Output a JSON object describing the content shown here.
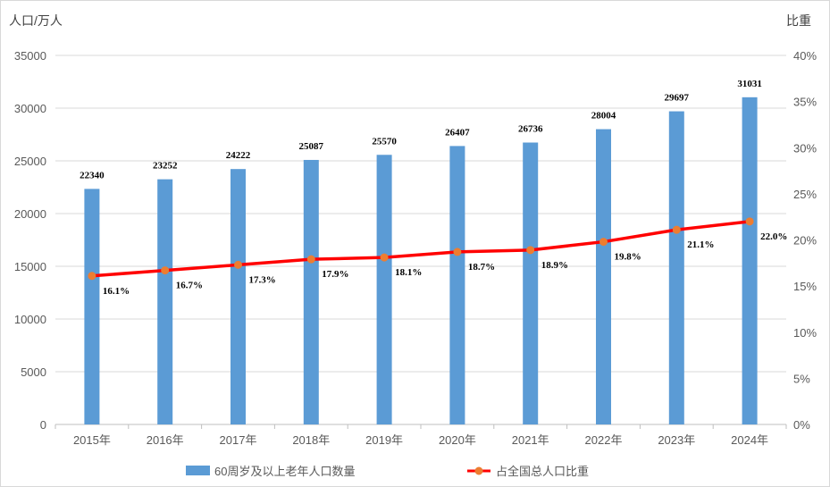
{
  "chart_data": {
    "type": "bar+line",
    "categories": [
      "2015年",
      "2016年",
      "2017年",
      "2018年",
      "2019年",
      "2020年",
      "2021年",
      "2022年",
      "2023年",
      "2024年"
    ],
    "series": [
      {
        "name": "60周岁及以上老年人口数量",
        "type": "bar",
        "axis": "left",
        "color": "#5B9BD5",
        "values": [
          22340,
          23252,
          24222,
          25087,
          25570,
          26407,
          26736,
          28004,
          29697,
          31031
        ]
      },
      {
        "name": "占全国总人口比重",
        "type": "line",
        "axis": "right",
        "color": "#FF0000",
        "marker_color": "#ED7D31",
        "values": [
          16.1,
          16.7,
          17.3,
          17.9,
          18.1,
          18.7,
          18.9,
          19.8,
          21.1,
          22.0
        ],
        "labels": [
          "16.1%",
          "16.7%",
          "17.3%",
          "17.9%",
          "18.1%",
          "18.7%",
          "18.9%",
          "19.8%",
          "21.1%",
          "22.0%"
        ]
      }
    ],
    "ylabel": "人口/万人",
    "y2label": "比重",
    "ylim": [
      0,
      35000
    ],
    "yticks": [
      "0",
      "5000",
      "10000",
      "15000",
      "20000",
      "25000",
      "30000",
      "35000"
    ],
    "y2lim": [
      0,
      40
    ],
    "y2ticks": [
      "0%",
      "5%",
      "10%",
      "15%",
      "20%",
      "25%",
      "30%",
      "35%",
      "40%"
    ],
    "grid": true,
    "legend": "bottom"
  }
}
